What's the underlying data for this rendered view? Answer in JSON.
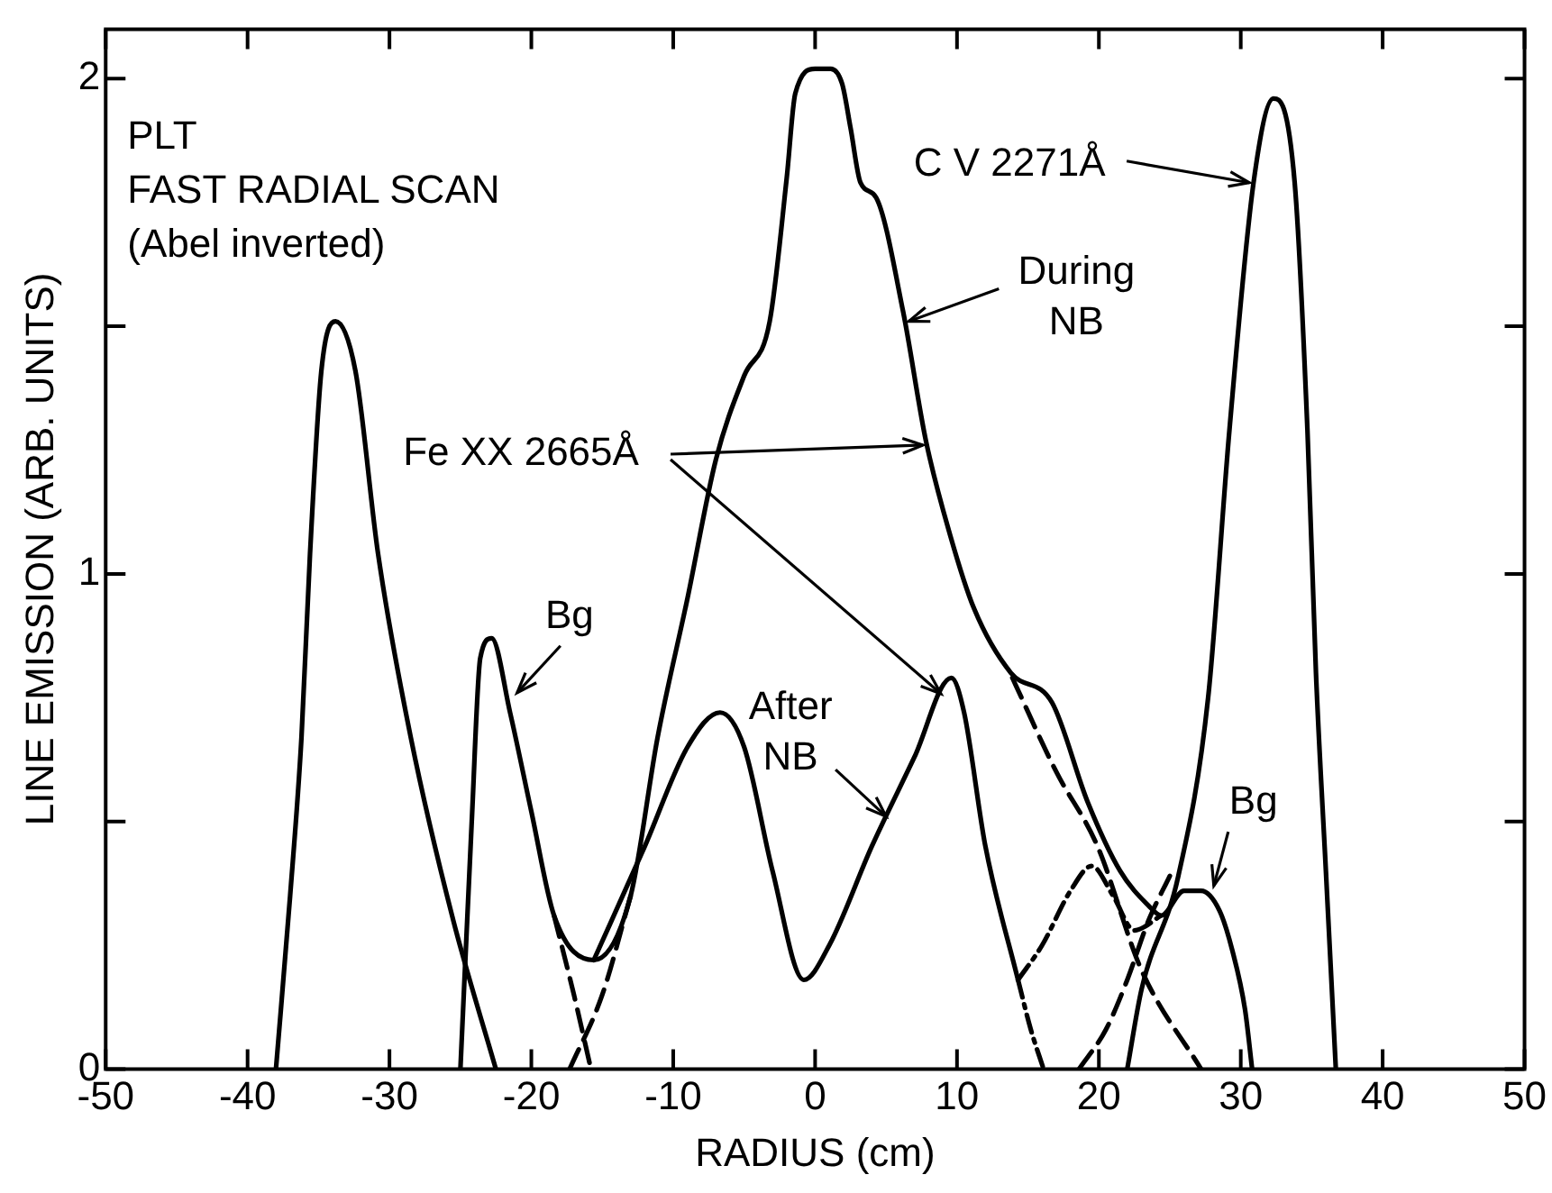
{
  "chart_data": {
    "type": "line",
    "xlabel": "RADIUS (cm)",
    "ylabel": "LINE EMISSION (ARB. UNITS)",
    "xlim": [
      -50,
      50
    ],
    "xticks": [
      -50,
      -40,
      -30,
      -20,
      -10,
      0,
      10,
      20,
      30,
      40,
      50
    ],
    "ylim": [
      0,
      2.1
    ],
    "yticks": [
      0,
      {
        "value": 0.5,
        "label": null
      },
      1,
      {
        "value": 1.5,
        "label": null
      },
      2
    ],
    "grid": false,
    "legend": false,
    "marker": "none",
    "line_style": "solid",
    "series": [
      {
        "color": "#000000",
        "x": [
          -38,
          -37,
          -36.2,
          -35.6,
          -34.8,
          -33.8,
          -32.4,
          -30.8,
          -28.5,
          -25.5,
          -22.5,
          0,
          22,
          23,
          25.6,
          27.7,
          29.2,
          30.9,
          32.3,
          33.8,
          34.7,
          35.3,
          36,
          36.7
        ],
        "values": [
          0,
          0.35,
          0.67,
          1.04,
          1.41,
          1.51,
          1.41,
          1.04,
          0.67,
          0.3,
          0,
          null,
          0,
          0.16,
          0.39,
          0.75,
          1.29,
          1.79,
          1.96,
          1.79,
          1.29,
          0.8,
          0.4,
          0
        ]
      },
      {
        "color": "#000000",
        "x": [
          -25,
          -24.2,
          -23.6,
          -22.8,
          -21.5,
          -20,
          -18.4,
          -15.6,
          -13,
          -11.1,
          -9,
          -7,
          -5,
          -3.2,
          -2,
          -1.4,
          0,
          1.1,
          1.9,
          2.5,
          3.2,
          4.3,
          6.2,
          7.8,
          9.5,
          11.2,
          13.8,
          16.7,
          19.2,
          21.5,
          23.5,
          24.4,
          26,
          27.2,
          28.5,
          29.4,
          30.3,
          30.8
        ],
        "values": [
          0,
          0.5,
          0.83,
          0.87,
          0.72,
          0.52,
          0.31,
          0.22,
          0.35,
          0.67,
          0.95,
          1.23,
          1.4,
          1.51,
          1.8,
          1.97,
          2.02,
          2.02,
          1.99,
          1.9,
          1.79,
          1.76,
          1.53,
          1.27,
          1.08,
          0.93,
          0.8,
          0.74,
          0.54,
          0.4,
          0.33,
          0.31,
          0.36,
          0.36,
          0.32,
          0.24,
          0.12,
          0
        ]
      },
      {
        "color": "#000000",
        "x": [
          -15.6,
          -12,
          -9,
          -6.7,
          -5,
          -3,
          -0.8,
          1,
          4,
          7,
          9.6,
          10.5,
          12,
          14.3
        ],
        "values": [
          0.22,
          0.45,
          0.65,
          0.72,
          0.65,
          0.4,
          0.18,
          0.25,
          0.45,
          0.63,
          0.79,
          0.72,
          0.45,
          0.18
        ]
      },
      {
        "color": "#000000",
        "line_style": "dotted",
        "x": [
          14.3,
          16,
          18,
          19.5,
          21,
          22.5,
          24.4
        ],
        "values": [
          0.18,
          0.25,
          0.36,
          0.41,
          0.35,
          0.28,
          0.31
        ]
      },
      {
        "color": "#000000",
        "line_style": "dotted",
        "x": [
          14.3,
          15.2,
          16.1
        ],
        "values": [
          0.18,
          0.08,
          0
        ]
      },
      {
        "color": "#000000",
        "line_style": "dashed",
        "x": [
          -18.4,
          -17,
          -15.8
        ],
        "values": [
          0.31,
          0.15,
          0
        ]
      },
      {
        "color": "#000000",
        "line_style": "dashed",
        "x": [
          -17.3,
          -15,
          -13
        ],
        "values": [
          0,
          0.15,
          0.35
        ]
      },
      {
        "color": "#000000",
        "line_style": "dashed",
        "x": [
          13.9,
          17,
          19.9,
          23,
          27.2
        ],
        "values": [
          0.79,
          0.6,
          0.45,
          0.2,
          0
        ]
      },
      {
        "color": "#000000",
        "line_style": "dashed",
        "x": [
          18.6,
          20.5,
          22,
          23.5,
          25
        ],
        "values": [
          0,
          0.08,
          0.18,
          0.3,
          0.39
        ]
      }
    ],
    "annotations": [
      "PLT",
      "FAST RADIAL SCAN",
      "(Abel inverted)",
      {
        "text": "C V 2271Å",
        "x": 30.6,
        "y": 1.79
      },
      {
        "text": "During NB",
        "x": 6.6,
        "y": 1.51
      },
      {
        "text": "Fe XX 2665Å",
        "x": 7.6,
        "y": 1.26
      },
      {
        "text": "Bg",
        "x": -21,
        "y": 0.76
      },
      {
        "text": "After NB",
        "x": 5,
        "y": 0.51
      },
      {
        "text": "Bg",
        "x": 28.1,
        "y": 0.37
      }
    ]
  }
}
